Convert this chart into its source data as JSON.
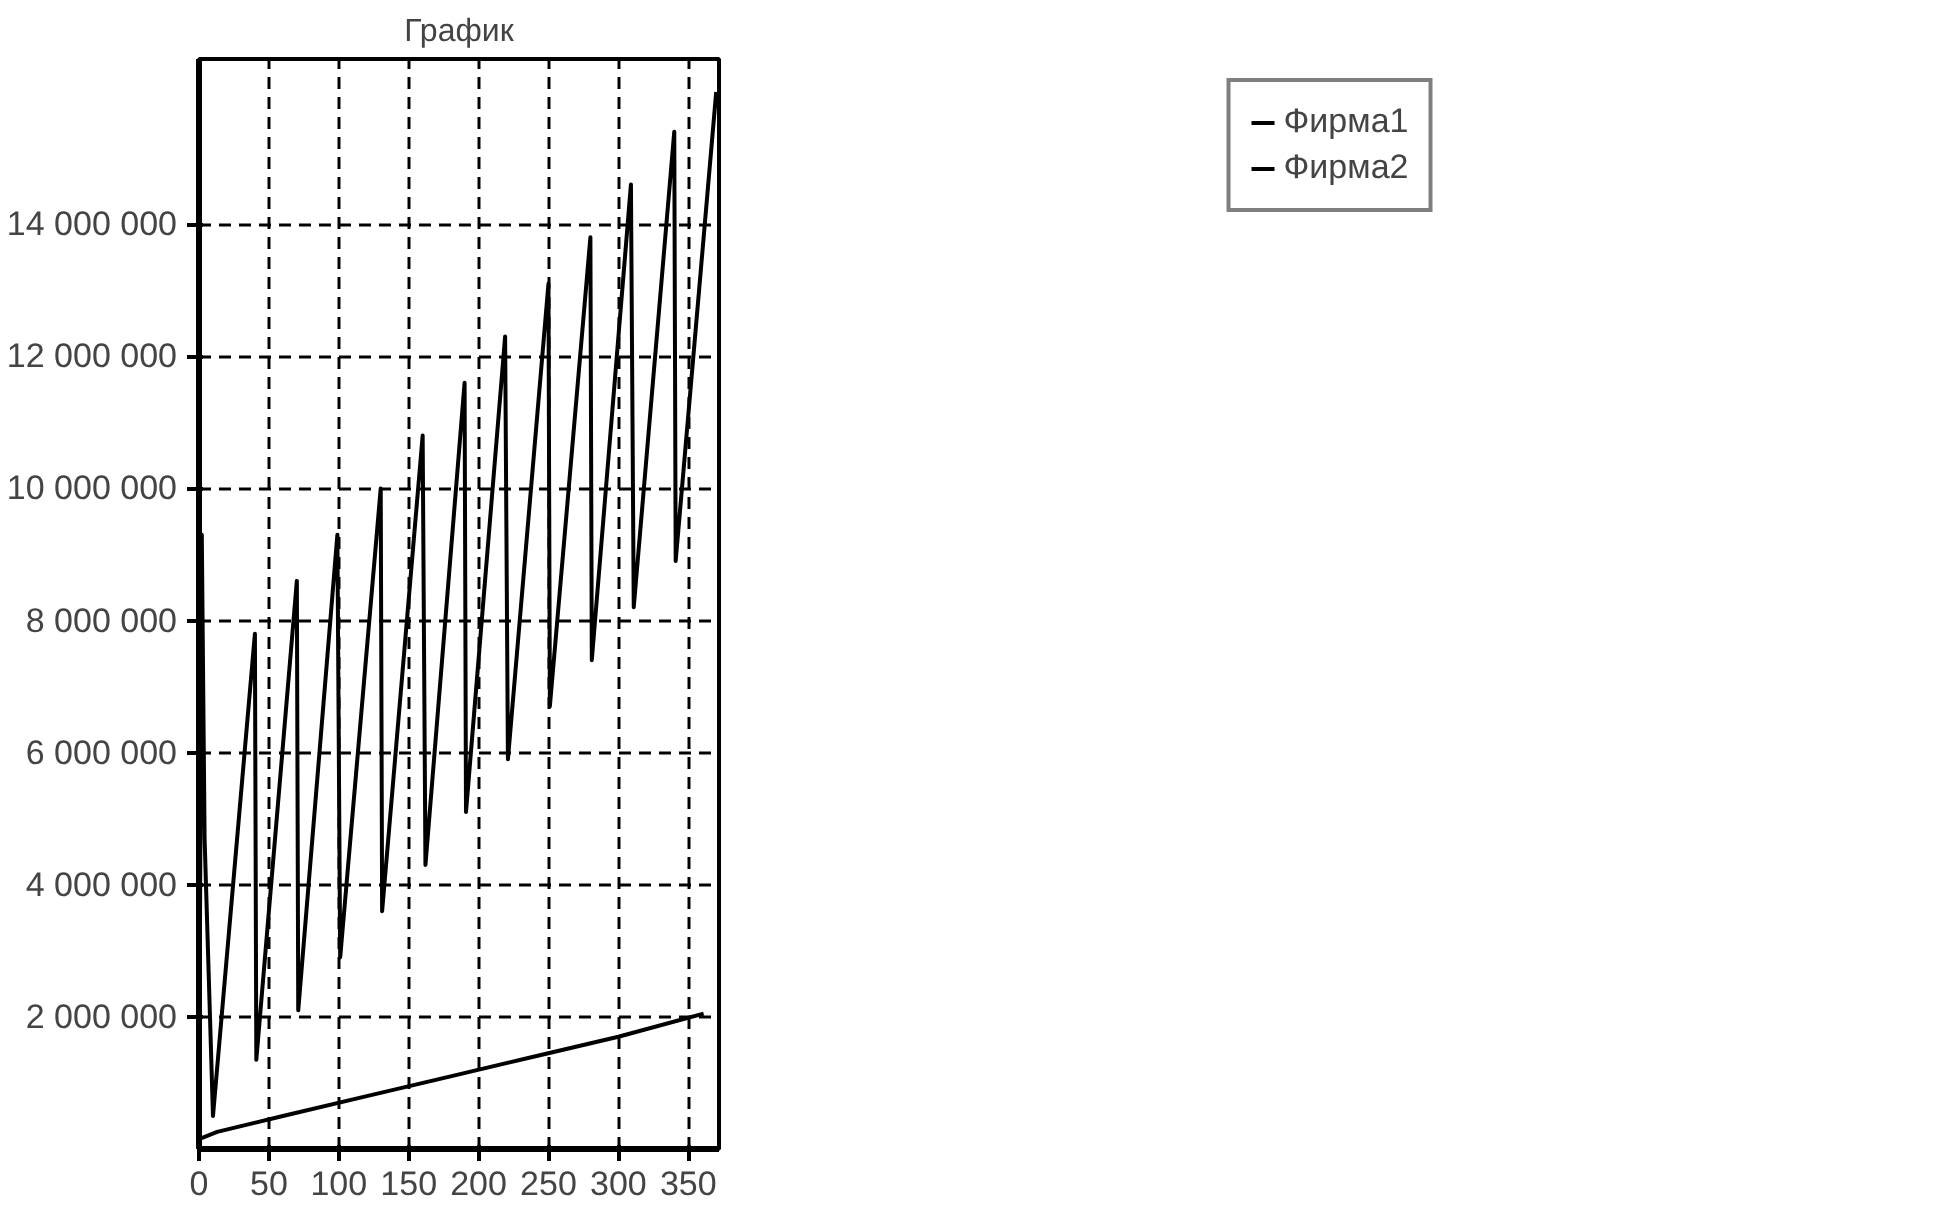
{
  "chart_data": {
    "type": "line",
    "title": "График",
    "xlim": [
      0,
      372
    ],
    "ylim": [
      0,
      16500000
    ],
    "xticks": [
      0,
      50,
      100,
      150,
      200,
      250,
      300,
      350
    ],
    "yticks": [
      {
        "value": 2000000,
        "label": "2 000 000"
      },
      {
        "value": 4000000,
        "label": "4 000 000"
      },
      {
        "value": 6000000,
        "label": "6 000 000"
      },
      {
        "value": 8000000,
        "label": "8 000 000"
      },
      {
        "value": 10000000,
        "label": "10 000 000"
      },
      {
        "value": 12000000,
        "label": "12 000 000"
      },
      {
        "value": 14000000,
        "label": "14 000 000"
      }
    ],
    "grid": true,
    "legend": "top right",
    "marker": "none",
    "line_style": "solid",
    "series": [
      {
        "name": "Фирма1",
        "color": "#000000",
        "x": [
          0,
          2,
          4,
          10,
          40,
          41,
          70,
          71,
          99,
          101,
          130,
          131,
          160,
          162,
          190,
          191,
          219,
          221,
          250,
          251,
          280,
          281,
          309,
          311,
          340,
          341,
          370
        ],
        "values": [
          200000,
          9300000,
          4700000,
          500000,
          7800000,
          1350000,
          8600000,
          2100000,
          9300000,
          2900000,
          10000000,
          3600000,
          10800000,
          4300000,
          11600000,
          5100000,
          12300000,
          5900000,
          13100000,
          6700000,
          13800000,
          7400000,
          14600000,
          8200000,
          15400000,
          8900000,
          16000000
        ]
      },
      {
        "name": "Фирма2",
        "color": "#000000",
        "x": [
          0,
          13,
          60,
          120,
          180,
          240,
          300,
          361
        ],
        "values": [
          150000,
          260000,
          500000,
          800000,
          1100000,
          1400000,
          1700000,
          2050000
        ]
      }
    ]
  }
}
